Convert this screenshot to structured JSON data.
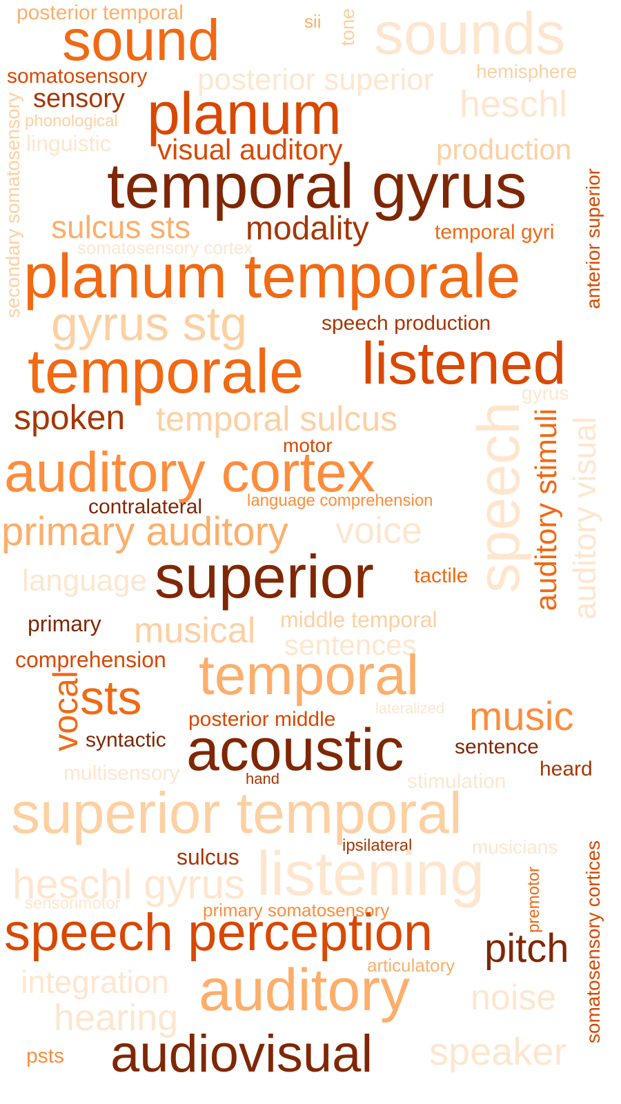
{
  "palette": {
    "c1": "#7f2704",
    "c2": "#a63603",
    "c3": "#d94801",
    "c4": "#f16913",
    "c5": "#fd8d3c",
    "c6": "#fdae6b",
    "c7": "#fdd0a2",
    "c8": "#fee6ce"
  },
  "words": [
    {
      "text": "posterior temporal",
      "color": "c6"
    },
    {
      "text": "sound",
      "color": "c4"
    },
    {
      "text": "sii",
      "color": "c6"
    },
    {
      "text": "tone",
      "color": "c7"
    },
    {
      "text": "sounds",
      "color": "c8"
    },
    {
      "text": "somatosensory",
      "color": "c3"
    },
    {
      "text": "posterior superior",
      "color": "c8"
    },
    {
      "text": "hemisphere",
      "color": "c7"
    },
    {
      "text": "sensory",
      "color": "c2"
    },
    {
      "text": "planum",
      "color": "c3"
    },
    {
      "text": "heschl",
      "color": "c8"
    },
    {
      "text": "phonological",
      "color": "c7"
    },
    {
      "text": "linguistic",
      "color": "c8"
    },
    {
      "text": "visual auditory",
      "color": "c3"
    },
    {
      "text": "production",
      "color": "c7"
    },
    {
      "text": "secondary somatosensory",
      "color": "c7"
    },
    {
      "text": "temporal gyrus",
      "color": "c1"
    },
    {
      "text": "anterior superior",
      "color": "c3"
    },
    {
      "text": "sulcus sts",
      "color": "c6"
    },
    {
      "text": "modality",
      "color": "c2"
    },
    {
      "text": "temporal gyri",
      "color": "c4"
    },
    {
      "text": "somatosensory cortex",
      "color": "c8"
    },
    {
      "text": "planum temporale",
      "color": "c4"
    },
    {
      "text": "gyrus stg",
      "color": "c7"
    },
    {
      "text": "speech production",
      "color": "c2"
    },
    {
      "text": "temporale",
      "color": "c4"
    },
    {
      "text": "listened",
      "color": "c3"
    },
    {
      "text": "gyrus",
      "color": "c8"
    },
    {
      "text": "spoken",
      "color": "c2"
    },
    {
      "text": "temporal sulcus",
      "color": "c7"
    },
    {
      "text": "speech",
      "color": "c8"
    },
    {
      "text": "auditory stimuli",
      "color": "c4"
    },
    {
      "text": "auditory visual",
      "color": "c8"
    },
    {
      "text": "motor",
      "color": "c3"
    },
    {
      "text": "auditory cortex",
      "color": "c5"
    },
    {
      "text": "contralateral",
      "color": "c1"
    },
    {
      "text": "language comprehension",
      "color": "c5"
    },
    {
      "text": "primary auditory",
      "color": "c6"
    },
    {
      "text": "voice",
      "color": "c8"
    },
    {
      "text": "language",
      "color": "c8"
    },
    {
      "text": "superior",
      "color": "c1"
    },
    {
      "text": "tactile",
      "color": "c4"
    },
    {
      "text": "primary",
      "color": "c1"
    },
    {
      "text": "musical",
      "color": "c7"
    },
    {
      "text": "middle temporal",
      "color": "c7"
    },
    {
      "text": "sentences",
      "color": "c8"
    },
    {
      "text": "comprehension",
      "color": "c3"
    },
    {
      "text": "temporal",
      "color": "c6"
    },
    {
      "text": "vocal",
      "color": "c4"
    },
    {
      "text": "sts",
      "color": "c4"
    },
    {
      "text": "lateralized",
      "color": "c8"
    },
    {
      "text": "music",
      "color": "c5"
    },
    {
      "text": "posterior middle",
      "color": "c3"
    },
    {
      "text": "syntactic",
      "color": "c1"
    },
    {
      "text": "acoustic",
      "color": "c1"
    },
    {
      "text": "sentence",
      "color": "c1"
    },
    {
      "text": "heard",
      "color": "c2"
    },
    {
      "text": "multisensory",
      "color": "c8"
    },
    {
      "text": "hand",
      "color": "c2"
    },
    {
      "text": "stimulation",
      "color": "c8"
    },
    {
      "text": "superior temporal",
      "color": "c7"
    },
    {
      "text": "ipsilateral",
      "color": "c2"
    },
    {
      "text": "musicians",
      "color": "c8"
    },
    {
      "text": "sulcus",
      "color": "c2"
    },
    {
      "text": "listening",
      "color": "c8"
    },
    {
      "text": "heschl gyrus",
      "color": "c8"
    },
    {
      "text": "somatosensory cortices",
      "color": "c3"
    },
    {
      "text": "sensorimotor",
      "color": "c8"
    },
    {
      "text": "primary somatosensory",
      "color": "c5"
    },
    {
      "text": "premotor",
      "color": "c4"
    },
    {
      "text": "speech perception",
      "color": "c3"
    },
    {
      "text": "pitch",
      "color": "c1"
    },
    {
      "text": "articulatory",
      "color": "c6"
    },
    {
      "text": "integration",
      "color": "c8"
    },
    {
      "text": "auditory",
      "color": "c6"
    },
    {
      "text": "noise",
      "color": "c8"
    },
    {
      "text": "hearing",
      "color": "c8"
    },
    {
      "text": "psts",
      "color": "c5"
    },
    {
      "text": "audiovisual",
      "color": "c1"
    },
    {
      "text": "speaker",
      "color": "c8"
    }
  ]
}
